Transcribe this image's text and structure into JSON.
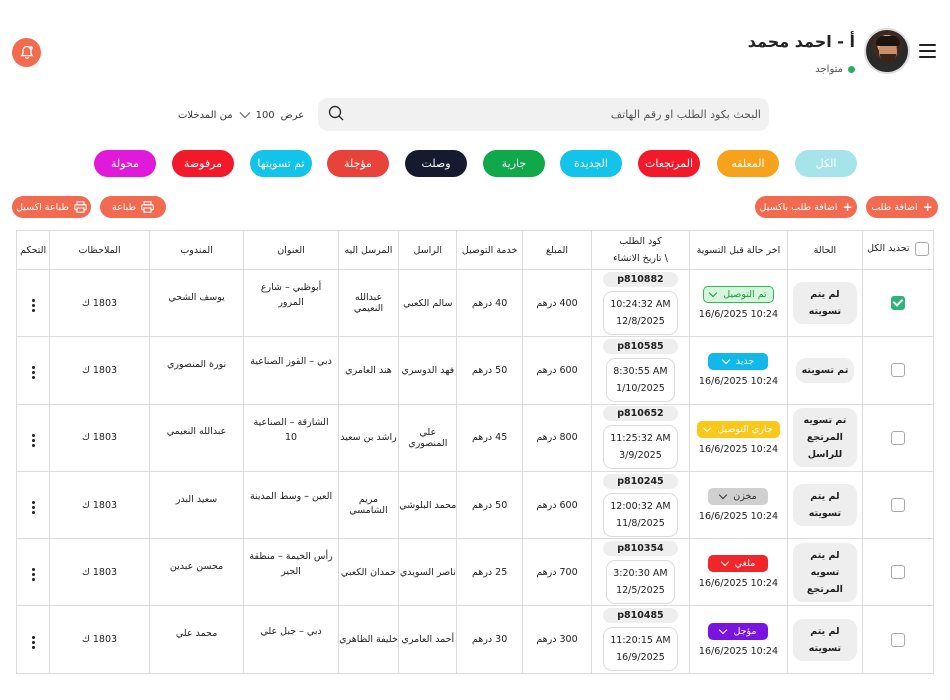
{
  "user": {
    "name": "أ - احمد محمد",
    "status": "متواجد"
  },
  "search": {
    "placeholder": "البحث بكود الطلب او رقم الهاتف"
  },
  "entries": {
    "prefix": "عرض",
    "value": "100",
    "suffix": "من المدخلات"
  },
  "filters": [
    {
      "label": "الكل",
      "color": "#a6e4ea"
    },
    {
      "label": "المعلقه",
      "color": "#f7a21b"
    },
    {
      "label": "المرتجعات",
      "color": "#f2192b"
    },
    {
      "label": "الجديدة",
      "color": "#12c3ea"
    },
    {
      "label": "جارية",
      "color": "#0fa84a"
    },
    {
      "label": "وصلت",
      "color": "#151a2e"
    },
    {
      "label": "مؤجلة",
      "color": "#e8433b"
    },
    {
      "label": "تم تسويتها",
      "color": "#12c3ea"
    },
    {
      "label": "مرفوضة",
      "color": "#f2192b"
    },
    {
      "label": "محولة",
      "color": "#e01ad8"
    }
  ],
  "actions": {
    "add_order": "اضافة طلب",
    "add_excel": "اضافة طلب باكسيل",
    "print": "طباعة",
    "print_excel": "طباعة اكسيل"
  },
  "table": {
    "headers": {
      "select_all": "تحديد الكل",
      "state": "الحالة",
      "last_state": "اخر حالة قبل التسوية",
      "code_line1": "كود الطلب",
      "code_line2": "\\ تاريخ الانشاء",
      "amount": "المبلغ",
      "delivery": "خدمة التوصيل",
      "sender": "الراسل",
      "receiver": "المرسل اليه",
      "address": "العنوان",
      "agent": "المندوب",
      "notes": "الملاحظات",
      "control": "التحكم"
    },
    "rows": [
      {
        "checked": true,
        "state": "لم يتم تسويته",
        "tag": "تم التوصيل",
        "tag_bg": "#d6f5dd",
        "tag_fg": "#1a9a3a",
        "tag_border": "#2dbb52",
        "tag_dt": "16/6/2025 10:24",
        "code": "p810882",
        "time": "10:24:32 AM",
        "date": "12/8/2025",
        "amount": "400 درهم",
        "delivery": "40 درهم",
        "sender": "سالم الكعبي",
        "receiver": "عبدالله النعيمي",
        "address": "أبوظبي – شارع المرور",
        "agent": "يوسف الشحي",
        "notes": "1803 ك"
      },
      {
        "checked": false,
        "state": "تم تسويته",
        "tag": "جديد",
        "tag_bg": "#12b8e8",
        "tag_fg": "#ffffff",
        "tag_border": "#12b8e8",
        "tag_dt": "16/6/2025 10:24",
        "code": "p810585",
        "time": "8:30:55 AM",
        "date": "1/10/2025",
        "amount": "600 درهم",
        "delivery": "50 درهم",
        "sender": "فهد الدوسري",
        "receiver": "هند العامري",
        "address": "دبي – القوز الصناعية",
        "agent": "نورة المنصوري",
        "notes": "1803 ك"
      },
      {
        "checked": false,
        "state": "تم تسويه المرتجع للراسل",
        "tag": "جاري التوصيل",
        "tag_bg": "#f9c81b",
        "tag_fg": "#ffffff",
        "tag_border": "#f9c81b",
        "tag_dt": "16/6/2025 10:24",
        "code": "p810652",
        "time": "11:25:32 AM",
        "date": "3/9/2025",
        "amount": "800 درهم",
        "delivery": "45 درهم",
        "sender": "علي المنصوري",
        "receiver": "راشد بن سعيد",
        "address": "الشارقة – الصناعية 10",
        "agent": "عبدالله النعيمي",
        "notes": "1803 ك"
      },
      {
        "checked": false,
        "state": "لم يتم تسويته",
        "tag": "مخزن",
        "tag_bg": "#d0d0d0",
        "tag_fg": "#333333",
        "tag_border": "#d0d0d0",
        "tag_dt": "16/6/2025 10:24",
        "code": "p810245",
        "time": "12:00:32 AM",
        "date": "11/8/2025",
        "amount": "600 درهم",
        "delivery": "50 درهم",
        "sender": "محمد البلوشي",
        "receiver": "مريم الشامسي",
        "address": "العين – وسط المدينة",
        "agent": "سعيد البدر",
        "notes": "1803 ك"
      },
      {
        "checked": false,
        "state": "لم يتم تسويه المرتجع",
        "tag": "ملغي",
        "tag_bg": "#f0262b",
        "tag_fg": "#ffffff",
        "tag_border": "#f0262b",
        "tag_dt": "16/6/2025 10:24",
        "code": "p810354",
        "time": "3:20:30 AM",
        "date": "12/5/2025",
        "amount": "700 درهم",
        "delivery": "25 درهم",
        "sender": "ناصر السويدي",
        "receiver": "حمدان الكعبي",
        "address": "رأس الخيمة – منطقة الجير",
        "agent": "محسن عبدين",
        "notes": "1803 ك"
      },
      {
        "checked": false,
        "state": "لم يتم تسويته",
        "tag": "مؤجل",
        "tag_bg": "#7a12e0",
        "tag_fg": "#ffffff",
        "tag_border": "#7a12e0",
        "tag_dt": "16/6/2025 10:24",
        "code": "p810485",
        "time": "11:20:15 AM",
        "date": "16/9/2025",
        "amount": "300 درهم",
        "delivery": "30 درهم",
        "sender": "أحمد العامري",
        "receiver": "خليفة الظاهري",
        "address": "دبي – جبل علي",
        "agent": "محمد علي",
        "notes": "1803 ك"
      }
    ]
  }
}
